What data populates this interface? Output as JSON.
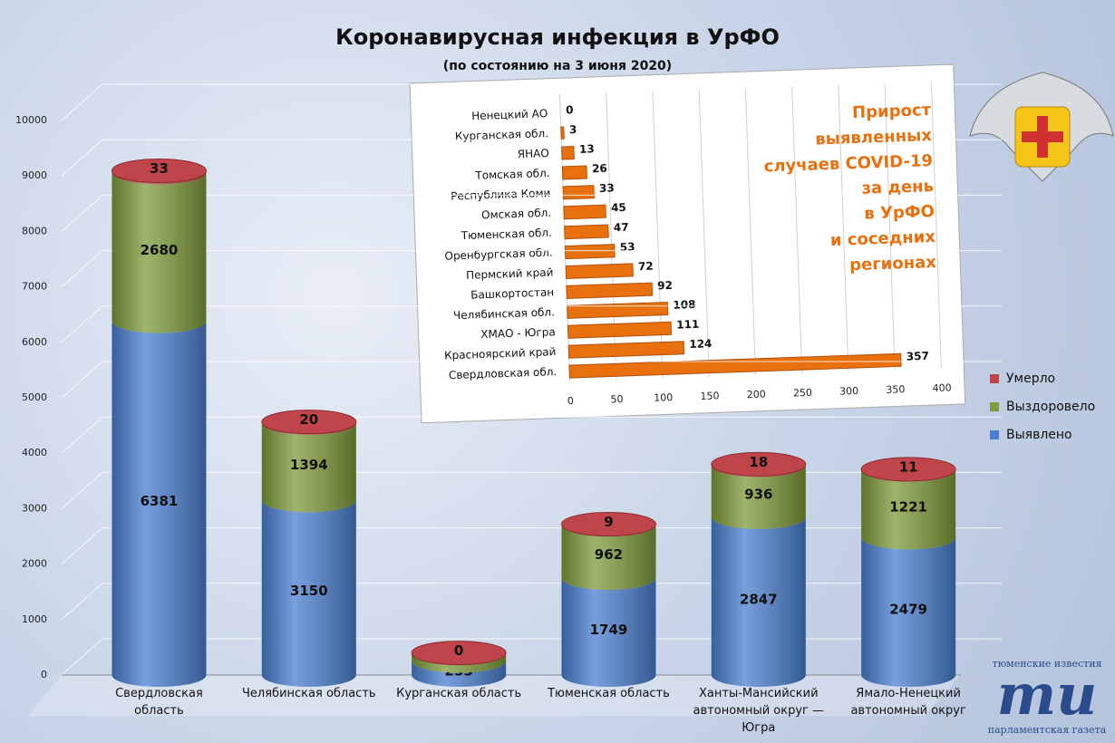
{
  "chart_data": [
    {
      "type": "bar",
      "stacked": true,
      "title": "Коронавирусная инфекция в УрФО",
      "subtitle": "(по состоянию на 3 июня 2020)",
      "categories": [
        "Свердловская область",
        "Челябинская область",
        "Курганская область",
        "Тюменская область",
        "Ханты-Мансийский автономный округ — Югра",
        "Ямало-Ненецкий автономный округ"
      ],
      "series": [
        {
          "name": "Выявлено",
          "color": "#4a7fd0",
          "values": [
            6381,
            3150,
            255,
            1749,
            2847,
            2479
          ]
        },
        {
          "name": "Выздоровело",
          "color": "#7f9b3a",
          "values": [
            2680,
            1394,
            144,
            962,
            936,
            1221
          ]
        },
        {
          "name": "Умерло",
          "color": "#c0454a",
          "values": [
            33,
            20,
            0,
            9,
            18,
            11
          ]
        }
      ],
      "ylim": [
        0,
        10000
      ],
      "yticks": [
        0,
        1000,
        2000,
        3000,
        4000,
        5000,
        6000,
        7000,
        8000,
        9000,
        10000
      ],
      "grid": true,
      "legend": "right"
    },
    {
      "type": "hbar",
      "title": "Прирост\nвыявленных\nслучаев COVID-19\nза день\nв УрФО\nи соседних\nрегионах",
      "categories": [
        "Ненецкий АО",
        "Курганская обл.",
        "ЯНАО",
        "Томская обл.",
        "Республика Коми",
        "Омская обл.",
        "Тюменская обл.",
        "Оренбургская обл.",
        "Пермский край",
        "Башкортостан",
        "Челябинская обл.",
        "ХМАО - Югра",
        "Красноярский край",
        "Свердловская обл."
      ],
      "values": [
        0,
        3,
        13,
        26,
        33,
        45,
        47,
        53,
        72,
        92,
        108,
        111,
        124,
        357
      ],
      "color": "#e8700f",
      "xlim": [
        0,
        400
      ],
      "xticks": [
        0,
        50,
        100,
        150,
        200,
        250,
        300,
        350,
        400
      ],
      "grid": true
    }
  ],
  "branding": {
    "top": "тюменские известия",
    "mark": "ти",
    "bottom": "парламентская газета"
  }
}
